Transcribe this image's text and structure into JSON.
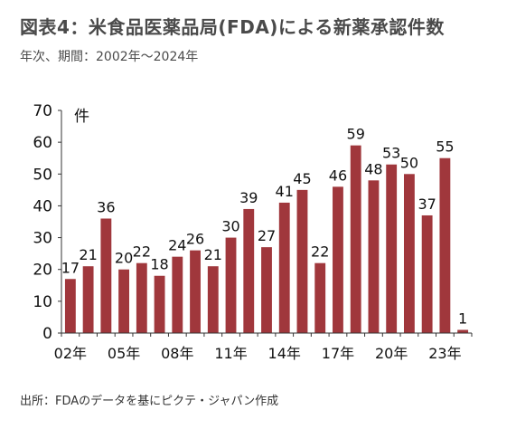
{
  "header": {
    "title": "図表4：米食品医薬品局(FDA)による新薬承認件数",
    "subtitle": "年次、期間：2002年～2024年"
  },
  "footer": {
    "source": "出所：FDAのデータを基にピクテ・ジャパン作成"
  },
  "chart_data": {
    "type": "bar",
    "title": "図表4：米食品医薬品局(FDA)による新薬承認件数",
    "subtitle": "年次、期間：2002年～2024年",
    "ylabel": "件",
    "ylim": [
      0,
      70
    ],
    "yticks": [
      0,
      10,
      20,
      30,
      40,
      50,
      60,
      70
    ],
    "grid": false,
    "bar_color": "#a0373c",
    "categories": [
      "2002",
      "2003",
      "2004",
      "2005",
      "2006",
      "2007",
      "2008",
      "2009",
      "2010",
      "2011",
      "2012",
      "2013",
      "2014",
      "2015",
      "2016",
      "2017",
      "2018",
      "2019",
      "2020",
      "2021",
      "2022",
      "2023",
      "2024"
    ],
    "values": [
      17,
      21,
      36,
      20,
      22,
      18,
      24,
      26,
      21,
      30,
      39,
      27,
      41,
      45,
      22,
      46,
      59,
      48,
      53,
      50,
      37,
      55,
      1
    ],
    "tick_labels": [
      {
        "index": 0,
        "label": "02年"
      },
      {
        "index": 3,
        "label": "05年"
      },
      {
        "index": 6,
        "label": "08年"
      },
      {
        "index": 9,
        "label": "11年"
      },
      {
        "index": 12,
        "label": "14年"
      },
      {
        "index": 15,
        "label": "17年"
      },
      {
        "index": 18,
        "label": "20年"
      },
      {
        "index": 21,
        "label": "23年"
      }
    ]
  }
}
